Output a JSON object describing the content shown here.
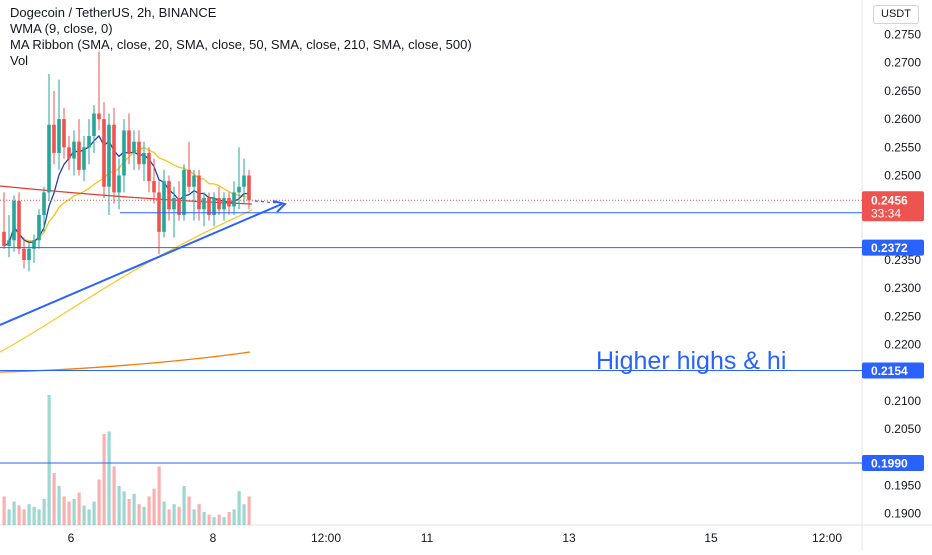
{
  "legend": {
    "title": "Dogecoin / TetherUS, 2h, BINANCE",
    "wma": "WMA (9, close, 0)",
    "ribbon": "MA Ribbon (SMA, close, 20, SMA, close, 50, SMA, close, 210, SMA, close, 500)",
    "vol": "Vol"
  },
  "currency_label": "USDT",
  "annotation_text": "Higher highs & hi",
  "price_badges": {
    "current": "0.2456",
    "countdown": "33:34"
  },
  "colors": {
    "up": "#26a69a",
    "down": "#ef5350",
    "drawing": "#2962ff",
    "wma": "#1e40af",
    "sma20": "#f5c518",
    "sma210": "#f57c00",
    "sma500": "#e53935"
  },
  "chart_data": {
    "type": "candlestick",
    "symbol": "Dogecoin / TetherUS",
    "interval": "2h",
    "exchange": "BINANCE",
    "y_axis": {
      "ticks": [
        "0.2750",
        "0.2700",
        "0.2650",
        "0.2600",
        "0.2550",
        "0.2500",
        "0.2350",
        "0.2300",
        "0.2250",
        "0.2200",
        "0.2100",
        "0.2050",
        "0.1950",
        "0.1900"
      ],
      "range": [
        0.188,
        0.279
      ]
    },
    "x_axis": {
      "ticks": [
        "6",
        "8",
        "12:00",
        "11",
        "13",
        "15",
        "12:00"
      ]
    },
    "candles": [
      {
        "o": 0.24,
        "h": 0.247,
        "l": 0.237,
        "c": 0.2375
      },
      {
        "o": 0.2375,
        "h": 0.243,
        "l": 0.2355,
        "c": 0.2385
      },
      {
        "o": 0.2385,
        "h": 0.2465,
        "l": 0.2365,
        "c": 0.2455
      },
      {
        "o": 0.2455,
        "h": 0.247,
        "l": 0.236,
        "c": 0.237
      },
      {
        "o": 0.237,
        "h": 0.239,
        "l": 0.2335,
        "c": 0.235
      },
      {
        "o": 0.235,
        "h": 0.238,
        "l": 0.233,
        "c": 0.237
      },
      {
        "o": 0.237,
        "h": 0.2395,
        "l": 0.2345,
        "c": 0.2385
      },
      {
        "o": 0.2385,
        "h": 0.244,
        "l": 0.237,
        "c": 0.243
      },
      {
        "o": 0.243,
        "h": 0.248,
        "l": 0.24,
        "c": 0.247
      },
      {
        "o": 0.247,
        "h": 0.268,
        "l": 0.2455,
        "c": 0.259
      },
      {
        "o": 0.259,
        "h": 0.265,
        "l": 0.252,
        "c": 0.254
      },
      {
        "o": 0.254,
        "h": 0.267,
        "l": 0.251,
        "c": 0.26
      },
      {
        "o": 0.26,
        "h": 0.262,
        "l": 0.253,
        "c": 0.255
      },
      {
        "o": 0.255,
        "h": 0.257,
        "l": 0.251,
        "c": 0.253
      },
      {
        "o": 0.253,
        "h": 0.258,
        "l": 0.25,
        "c": 0.256
      },
      {
        "o": 0.256,
        "h": 0.26,
        "l": 0.25,
        "c": 0.251
      },
      {
        "o": 0.251,
        "h": 0.257,
        "l": 0.249,
        "c": 0.255
      },
      {
        "o": 0.255,
        "h": 0.26,
        "l": 0.252,
        "c": 0.257
      },
      {
        "o": 0.257,
        "h": 0.2625,
        "l": 0.254,
        "c": 0.261
      },
      {
        "o": 0.261,
        "h": 0.272,
        "l": 0.258,
        "c": 0.26
      },
      {
        "o": 0.26,
        "h": 0.263,
        "l": 0.246,
        "c": 0.248
      },
      {
        "o": 0.248,
        "h": 0.261,
        "l": 0.243,
        "c": 0.259
      },
      {
        "o": 0.259,
        "h": 0.262,
        "l": 0.245,
        "c": 0.247
      },
      {
        "o": 0.247,
        "h": 0.253,
        "l": 0.244,
        "c": 0.25
      },
      {
        "o": 0.25,
        "h": 0.26,
        "l": 0.247,
        "c": 0.258
      },
      {
        "o": 0.258,
        "h": 0.261,
        "l": 0.252,
        "c": 0.254
      },
      {
        "o": 0.254,
        "h": 0.258,
        "l": 0.251,
        "c": 0.256
      },
      {
        "o": 0.256,
        "h": 0.258,
        "l": 0.251,
        "c": 0.252
      },
      {
        "o": 0.252,
        "h": 0.256,
        "l": 0.249,
        "c": 0.254
      },
      {
        "o": 0.254,
        "h": 0.255,
        "l": 0.247,
        "c": 0.249
      },
      {
        "o": 0.249,
        "h": 0.253,
        "l": 0.245,
        "c": 0.247
      },
      {
        "o": 0.247,
        "h": 0.249,
        "l": 0.236,
        "c": 0.24
      },
      {
        "o": 0.24,
        "h": 0.251,
        "l": 0.239,
        "c": 0.249
      },
      {
        "o": 0.249,
        "h": 0.25,
        "l": 0.242,
        "c": 0.244
      },
      {
        "o": 0.244,
        "h": 0.248,
        "l": 0.239,
        "c": 0.246
      },
      {
        "o": 0.246,
        "h": 0.249,
        "l": 0.242,
        "c": 0.243
      },
      {
        "o": 0.243,
        "h": 0.252,
        "l": 0.242,
        "c": 0.251
      },
      {
        "o": 0.251,
        "h": 0.256,
        "l": 0.247,
        "c": 0.248
      },
      {
        "o": 0.248,
        "h": 0.251,
        "l": 0.242,
        "c": 0.25
      },
      {
        "o": 0.25,
        "h": 0.251,
        "l": 0.242,
        "c": 0.244
      },
      {
        "o": 0.244,
        "h": 0.247,
        "l": 0.241,
        "c": 0.246
      },
      {
        "o": 0.246,
        "h": 0.247,
        "l": 0.242,
        "c": 0.243
      },
      {
        "o": 0.243,
        "h": 0.247,
        "l": 0.241,
        "c": 0.246
      },
      {
        "o": 0.246,
        "h": 0.248,
        "l": 0.243,
        "c": 0.244
      },
      {
        "o": 0.244,
        "h": 0.247,
        "l": 0.242,
        "c": 0.246
      },
      {
        "o": 0.246,
        "h": 0.247,
        "l": 0.243,
        "c": 0.2445
      },
      {
        "o": 0.2445,
        "h": 0.249,
        "l": 0.243,
        "c": 0.247
      },
      {
        "o": 0.247,
        "h": 0.255,
        "l": 0.244,
        "c": 0.248
      },
      {
        "o": 0.248,
        "h": 0.253,
        "l": 0.245,
        "c": 0.25
      },
      {
        "o": 0.25,
        "h": 0.251,
        "l": 0.244,
        "c": 0.2456
      }
    ],
    "volume": [
      0.22,
      0.12,
      0.18,
      0.15,
      0.12,
      0.16,
      0.14,
      0.12,
      0.2,
      1.0,
      0.4,
      0.3,
      0.22,
      0.18,
      0.2,
      0.25,
      0.15,
      0.12,
      0.18,
      0.35,
      0.7,
      0.72,
      0.45,
      0.3,
      0.26,
      0.2,
      0.24,
      0.16,
      0.14,
      0.22,
      0.28,
      0.45,
      0.18,
      0.12,
      0.16,
      0.14,
      0.3,
      0.22,
      0.12,
      0.16,
      0.1,
      0.08,
      0.06,
      0.08,
      0.06,
      0.1,
      0.12,
      0.26,
      0.16,
      0.22
    ],
    "horizontal_lines": [
      0.2434,
      0.2372,
      0.2154,
      0.199
    ],
    "price_labels": [
      "0.2434",
      "0.2372",
      "0.2154",
      "0.1990"
    ],
    "current_price_line": 0.2456
  }
}
